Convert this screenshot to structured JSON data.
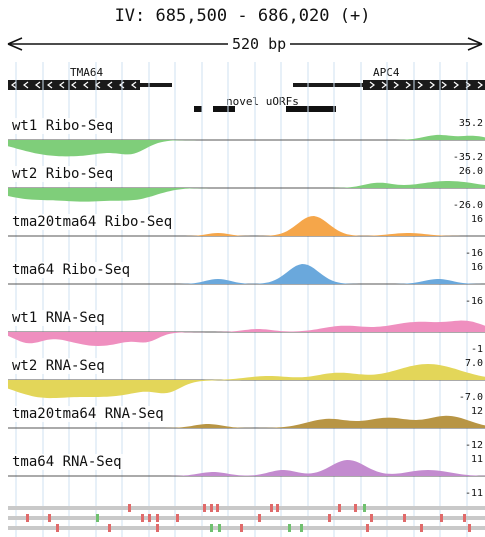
{
  "header": {
    "title": "IV: 685,500 - 686,020 (+)",
    "scale_label": "520 bp"
  },
  "genes": [
    {
      "name": "TMA64",
      "strand": "-"
    },
    {
      "name": "APC4",
      "strand": "+"
    }
  ],
  "uorfs_label": "novel uORFs",
  "tracks": [
    {
      "label": "wt1 Ribo-Seq",
      "max": "35.2",
      "min": "-35.2",
      "color": "#7fce7a"
    },
    {
      "label": "wt2 Ribo-Seq",
      "max": "26.0",
      "min": "-26.0",
      "color": "#7fce7a"
    },
    {
      "label": "tma20tma64 Ribo-Seq",
      "max": "16",
      "min": "-16",
      "color": "#f5a64a"
    },
    {
      "label": "tma64 Ribo-Seq",
      "max": "16",
      "min": "-16",
      "color": "#6aa8dc"
    },
    {
      "label": "wt1 RNA-Seq",
      "max": "",
      "min": "-1",
      "color": "#ef8fbf"
    },
    {
      "label": "wt2 RNA-Seq",
      "max": "7.0",
      "min": "-7.0",
      "color": "#e3d659"
    },
    {
      "label": "tma20tma64 RNA-Seq",
      "max": "12",
      "min": "-12",
      "color": "#b89544"
    },
    {
      "label": "tma64 RNA-Seq",
      "max": "11",
      "min": "-11",
      "color": "#c38bcf"
    }
  ]
}
